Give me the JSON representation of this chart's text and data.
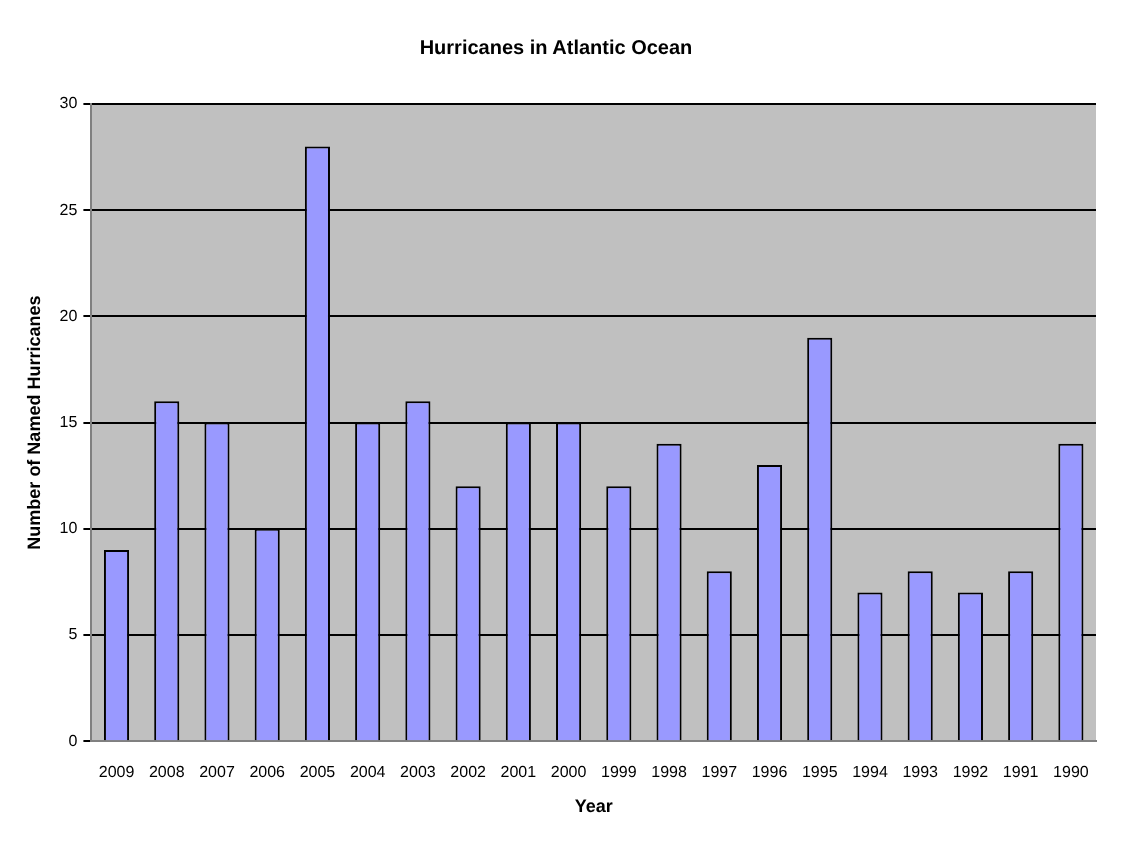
{
  "chart_data": {
    "type": "bar",
    "title": "Hurricanes in Atlantic Ocean",
    "xlabel": "Year",
    "ylabel": "Number of Named Hurricanes",
    "categories": [
      "2009",
      "2008",
      "2007",
      "2006",
      "2005",
      "2004",
      "2003",
      "2002",
      "2001",
      "2000",
      "1999",
      "1998",
      "1997",
      "1996",
      "1995",
      "1994",
      "1993",
      "1992",
      "1991",
      "1990"
    ],
    "values": [
      9,
      16,
      15,
      10,
      28,
      15,
      16,
      12,
      15,
      15,
      12,
      14,
      8,
      13,
      19,
      7,
      8,
      7,
      8,
      14
    ],
    "color": "#9999ff",
    "ylim": [
      0,
      30
    ],
    "yticks": [
      0,
      5,
      10,
      15,
      20,
      25,
      30
    ],
    "grid": "y",
    "legend": false
  }
}
